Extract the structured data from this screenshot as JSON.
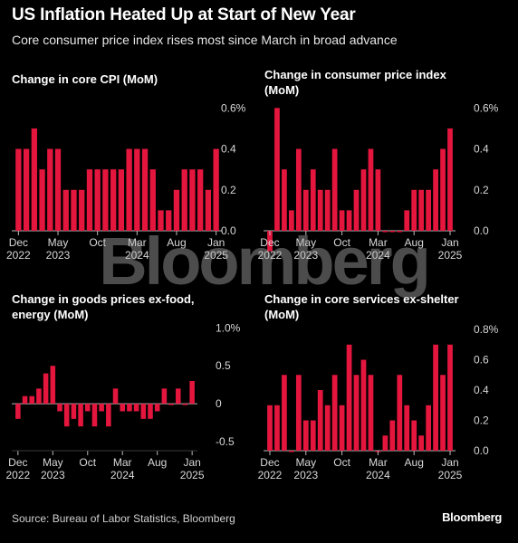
{
  "header": {
    "title": "US Inflation Heated Up at Start of New Year",
    "subtitle": "Core consumer price index rises most since March in broad advance"
  },
  "footer": {
    "source": "Source: Bureau of Labor Statistics, Bloomberg",
    "logo": "Bloomberg"
  },
  "watermark": "Bloomberg",
  "colors": {
    "bar": "#e5163e",
    "background": "#000000",
    "axis": "#bbbbbb"
  },
  "chart_data": [
    {
      "type": "bar",
      "title": "Change in core CPI (MoM)",
      "x_tick_labels": [
        [
          "Dec",
          "2022"
        ],
        [
          "May",
          "2023"
        ],
        [
          "Oct",
          ""
        ],
        [
          "Mar",
          "2024"
        ],
        [
          "Aug",
          ""
        ],
        [
          "Jan",
          "2025"
        ]
      ],
      "x_tick_index": [
        0,
        5,
        10,
        15,
        20,
        25
      ],
      "y_tick_labels": [
        "0.6%",
        "0.4",
        "0.2",
        "0.0"
      ],
      "y_tick_values": [
        0.6,
        0.4,
        0.2,
        0.0
      ],
      "ylim": [
        0,
        0.65
      ],
      "values": [
        0.4,
        0.4,
        0.5,
        0.3,
        0.4,
        0.4,
        0.2,
        0.2,
        0.2,
        0.3,
        0.3,
        0.3,
        0.3,
        0.3,
        0.4,
        0.4,
        0.4,
        0.3,
        0.1,
        0.1,
        0.2,
        0.3,
        0.3,
        0.3,
        0.2,
        0.4
      ]
    },
    {
      "type": "bar",
      "title": "Change in consumer price index (MoM)",
      "x_tick_labels": [
        [
          "Dec",
          "2022"
        ],
        [
          "May",
          "2023"
        ],
        [
          "Oct",
          ""
        ],
        [
          "Mar",
          "2024"
        ],
        [
          "Aug",
          ""
        ],
        [
          "Jan",
          "2025"
        ]
      ],
      "x_tick_index": [
        0,
        5,
        10,
        15,
        20,
        25
      ],
      "y_tick_labels": [
        "0.6%",
        "0.4",
        "0.2",
        "0.0"
      ],
      "y_tick_values": [
        0.6,
        0.4,
        0.2,
        0.0
      ],
      "ylim": [
        0,
        0.65
      ],
      "values": [
        -0.1,
        0.6,
        0.3,
        0.1,
        0.4,
        0.2,
        0.3,
        0.2,
        0.2,
        0.4,
        0.1,
        0.1,
        0.2,
        0.3,
        0.4,
        0.3,
        0.0,
        0.0,
        0.0,
        0.1,
        0.2,
        0.2,
        0.2,
        0.3,
        0.4,
        0.5
      ]
    },
    {
      "type": "bar",
      "title": "Change in goods prices ex-food, energy (MoM)",
      "x_tick_labels": [
        [
          "Dec",
          "2022"
        ],
        [
          "May",
          "2023"
        ],
        [
          "Oct",
          ""
        ],
        [
          "Mar",
          "2024"
        ],
        [
          "Aug",
          ""
        ],
        [
          "Jan",
          "2025"
        ]
      ],
      "x_tick_index": [
        0,
        5,
        10,
        15,
        20,
        25
      ],
      "y_tick_labels": [
        "1.0%",
        "0.5",
        "0",
        "-0.5"
      ],
      "y_tick_values": [
        1.0,
        0.5,
        0.0,
        -0.5
      ],
      "ylim": [
        -0.62,
        1.1
      ],
      "values": [
        -0.2,
        0.1,
        0.1,
        0.2,
        0.4,
        0.5,
        -0.1,
        -0.3,
        -0.2,
        -0.3,
        -0.1,
        -0.3,
        -0.1,
        -0.3,
        0.2,
        -0.1,
        -0.1,
        -0.1,
        -0.2,
        -0.2,
        -0.1,
        0.2,
        0.0,
        0.2,
        0.0,
        0.3
      ]
    },
    {
      "type": "bar",
      "title": "Change in core services ex-shelter (MoM)",
      "x_tick_labels": [
        [
          "Dec",
          "2022"
        ],
        [
          "May",
          "2023"
        ],
        [
          "Oct",
          ""
        ],
        [
          "Mar",
          "2024"
        ],
        [
          "Aug",
          ""
        ],
        [
          "Jan",
          "2025"
        ]
      ],
      "x_tick_index": [
        0,
        5,
        10,
        15,
        20,
        25
      ],
      "y_tick_labels": [
        "0.8%",
        "0.6",
        "0.4",
        "0.2",
        "0.0"
      ],
      "y_tick_values": [
        0.8,
        0.6,
        0.4,
        0.2,
        0.0
      ],
      "ylim": [
        0,
        0.86
      ],
      "values": [
        0.3,
        0.3,
        0.5,
        0.0,
        0.5,
        0.2,
        0.2,
        0.4,
        0.3,
        0.5,
        0.3,
        0.7,
        0.5,
        0.6,
        0.5,
        0.0,
        0.1,
        0.2,
        0.5,
        0.3,
        0.2,
        0.1,
        0.3,
        0.7,
        0.5,
        0.7
      ]
    }
  ]
}
